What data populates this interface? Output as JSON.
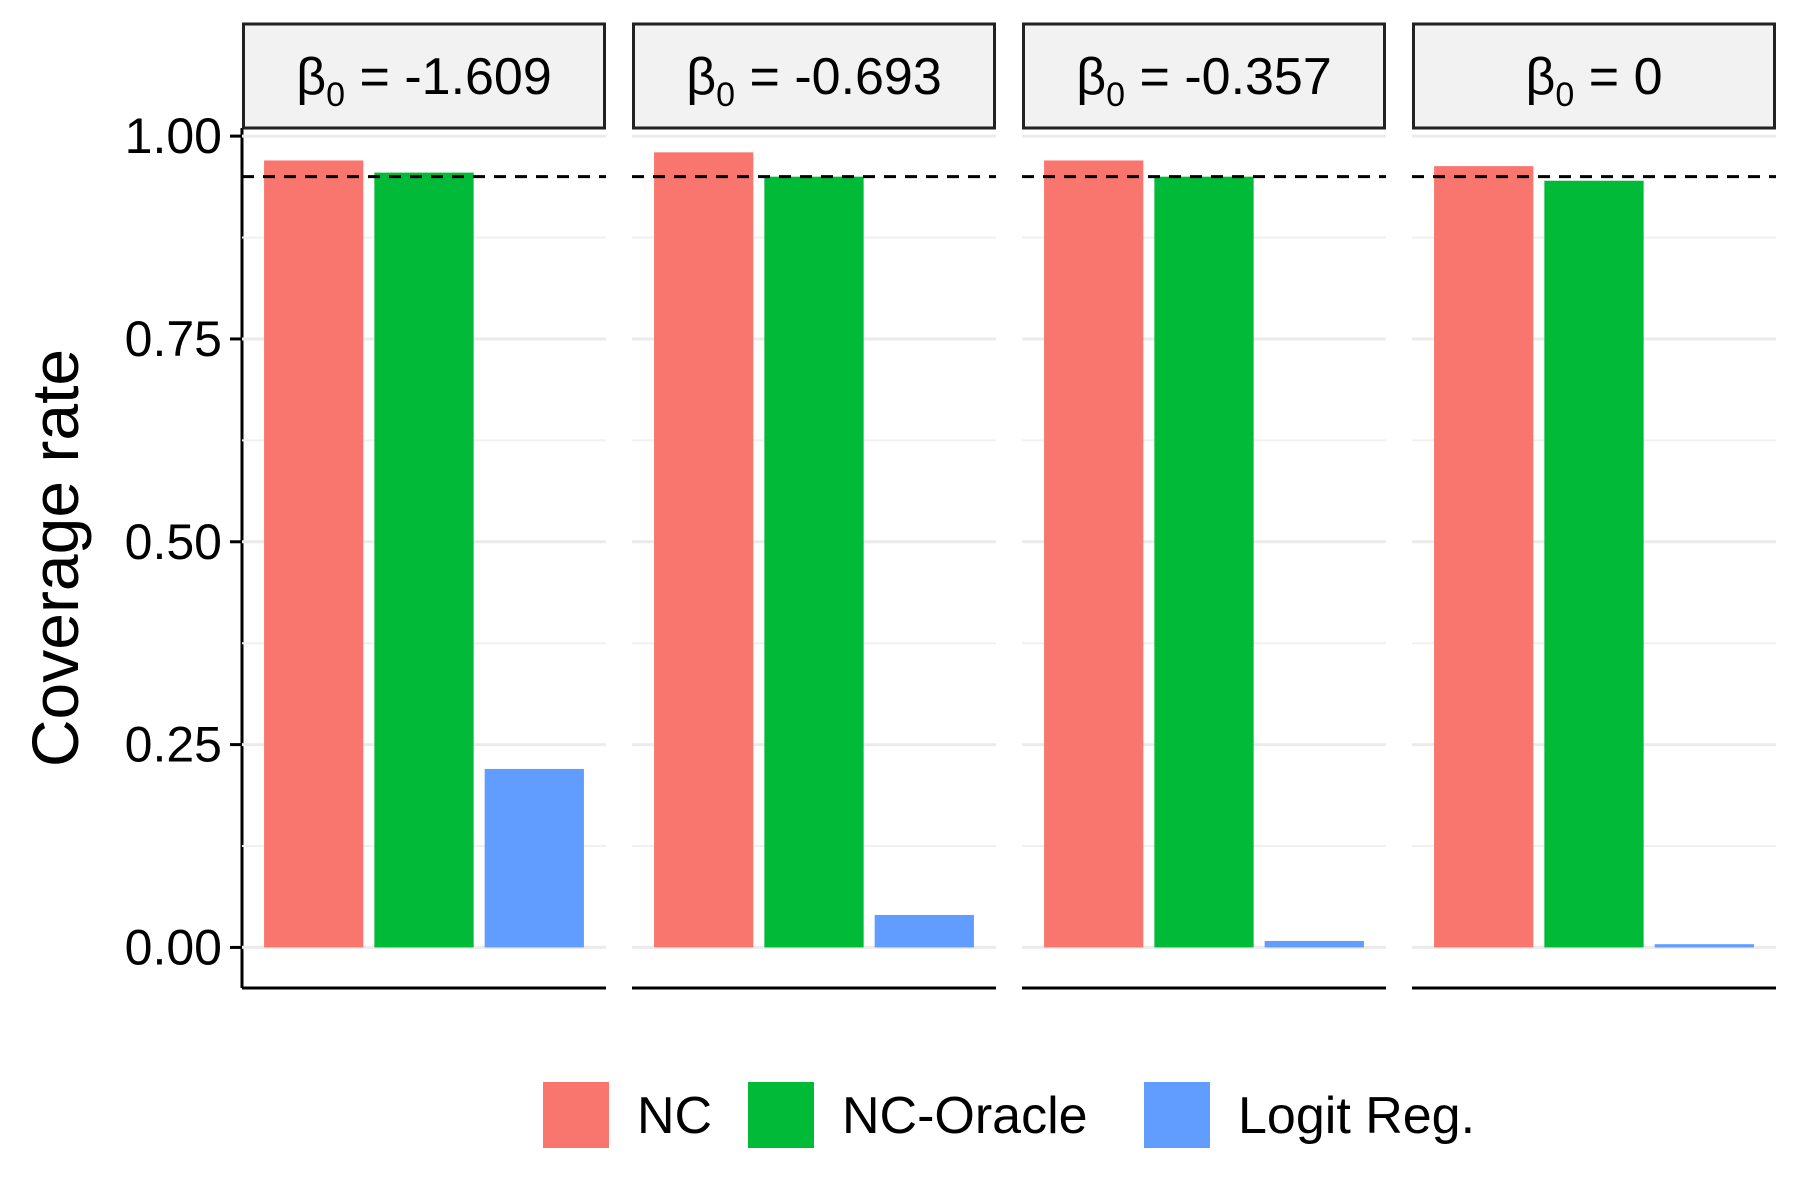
{
  "chart_data": {
    "type": "bar",
    "ylabel": "Coverage rate",
    "ylim": [
      -0.05,
      1.01
    ],
    "yticks": [
      0.0,
      0.25,
      0.5,
      0.75,
      1.0
    ],
    "ytick_labels": [
      "0.00",
      "0.25",
      "0.50",
      "0.75",
      "1.00"
    ],
    "reference_line": 0.95,
    "grid": true,
    "legend_position": "bottom",
    "series": [
      {
        "name": "NC",
        "color": "#F8766D"
      },
      {
        "name": "NC-Oracle",
        "color": "#00BA38"
      },
      {
        "name": "Logit Reg.",
        "color": "#619CFF"
      }
    ],
    "panels": [
      {
        "symbol": "β",
        "subscript": "0",
        "value": "-1.609",
        "values": [
          0.97,
          0.955,
          0.22
        ]
      },
      {
        "symbol": "β",
        "subscript": "0",
        "value": "-0.693",
        "values": [
          0.98,
          0.95,
          0.04
        ]
      },
      {
        "symbol": "β",
        "subscript": "0",
        "value": "-0.357",
        "values": [
          0.97,
          0.95,
          0.008
        ]
      },
      {
        "symbol": "β",
        "subscript": "0",
        "value": "0",
        "values": [
          0.963,
          0.945,
          0.004
        ]
      }
    ]
  }
}
